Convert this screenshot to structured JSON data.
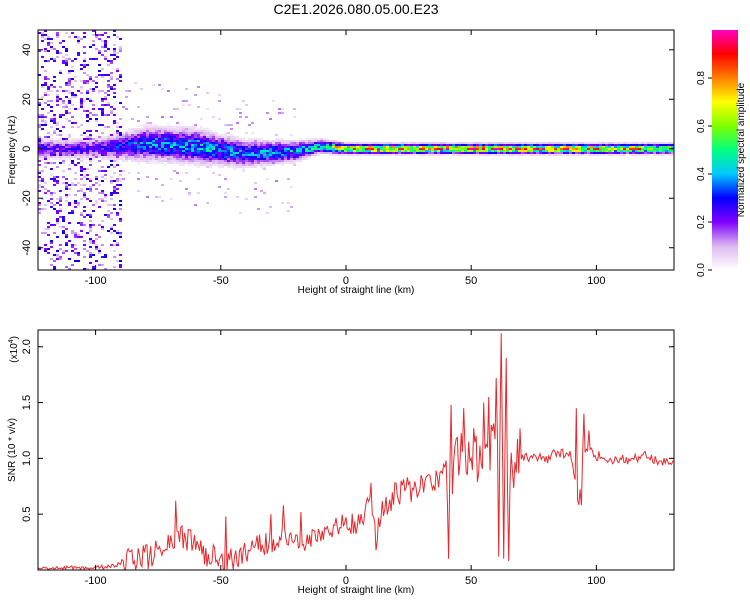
{
  "title": "C2E1.2026.080.05.00.E23",
  "chart_data": [
    {
      "type": "heatmap",
      "name": "spectrogram",
      "xlabel": "Height of straight line (km)",
      "ylabel": "Frequency (Hz)",
      "xlim": [
        -123,
        131
      ],
      "ylim": [
        -49,
        48
      ],
      "xticks": [
        -100,
        -50,
        0,
        50,
        100
      ],
      "yticks": [
        -40,
        -20,
        0,
        20,
        40
      ],
      "colorbar": {
        "label": "Normalized spectral amplitude",
        "range": [
          0,
          1
        ],
        "ticks": [
          0.0,
          0.2,
          0.4,
          0.6,
          0.8
        ],
        "tick_labels": [
          "0.0",
          "0.2",
          "0.4",
          "0.6",
          "0.8"
        ],
        "colormap": [
          "#ffffff",
          "#dcb8f0",
          "#8000ff",
          "#0000ff",
          "#00c8ff",
          "#00ff80",
          "#80ff00",
          "#ffff00",
          "#ff8000",
          "#ff0000",
          "#ff00c0"
        ]
      },
      "ridge": {
        "description": "spectral energy concentrated near 0 Hz",
        "x": [
          -100,
          -80,
          -60,
          -40,
          -20,
          -10,
          0,
          20,
          40,
          60,
          80,
          100,
          131
        ],
        "freq_center": [
          0,
          2,
          1,
          -2,
          -1,
          1,
          0,
          0,
          0,
          0,
          0,
          0,
          0
        ],
        "freq_halfwidth": [
          3,
          5,
          5,
          4,
          3,
          2,
          1.5,
          1.5,
          1.5,
          1.5,
          1.5,
          1.5,
          1.5
        ],
        "peak_amplitude": [
          0.25,
          0.4,
          0.45,
          0.4,
          0.45,
          0.55,
          0.85,
          0.95,
          0.9,
          0.95,
          0.9,
          0.9,
          0.7
        ]
      },
      "noise_region": {
        "x_range": [
          -123,
          -90
        ],
        "freq_range": [
          -49,
          48
        ],
        "amplitude": 0.15
      }
    },
    {
      "type": "line",
      "name": "snr",
      "xlabel": "Height of straight line (km)",
      "ylabel": "SNR (10 * v/v)",
      "scale_label": "(x10",
      "scale_exponent": "4",
      "xlim": [
        -123,
        131
      ],
      "ylim": [
        0,
        2.15
      ],
      "xticks": [
        -100,
        -50,
        0,
        50,
        100
      ],
      "yticks": [
        0.5,
        1.0,
        1.5,
        2.0
      ],
      "ytick_labels": [
        "0.5",
        "1.0",
        "1.5",
        "2.0"
      ],
      "color": "#e8282c",
      "series": [
        {
          "name": "SNR",
          "x": [
            -123,
            -110,
            -100,
            -95,
            -90,
            -85,
            -80,
            -75,
            -70,
            -65,
            -60,
            -55,
            -50,
            -45,
            -40,
            -35,
            -30,
            -25,
            -20,
            -15,
            -10,
            -5,
            0,
            5,
            10,
            12,
            15,
            20,
            25,
            30,
            35,
            40,
            42,
            45,
            48,
            50,
            55,
            60,
            62,
            64,
            65,
            70,
            75,
            80,
            85,
            90,
            93,
            95,
            100,
            105,
            110,
            115,
            120,
            125,
            131
          ],
          "values": [
            0.02,
            0.02,
            0.02,
            0.03,
            0.05,
            0.1,
            0.12,
            0.15,
            0.25,
            0.28,
            0.22,
            0.12,
            0.08,
            0.08,
            0.15,
            0.22,
            0.25,
            0.28,
            0.3,
            0.25,
            0.35,
            0.38,
            0.42,
            0.45,
            0.6,
            0.25,
            0.55,
            0.7,
            0.72,
            0.75,
            0.82,
            0.9,
            0.85,
            0.95,
            1.0,
            1.08,
            0.95,
            1.15,
            1.5,
            0.98,
            1.0,
            1.0,
            1.02,
            1.0,
            1.05,
            1.02,
            0.6,
            1.1,
            1.02,
            1.0,
            0.98,
            1.0,
            1.02,
            0.98,
            0.95
          ],
          "spikes": [
            {
              "x": -68,
              "value": 0.62
            },
            {
              "x": -48,
              "value": 0.48
            },
            {
              "x": -30,
              "value": 0.5
            },
            {
              "x": -25,
              "value": 0.58
            },
            {
              "x": -18,
              "value": 0.52
            },
            {
              "x": 10,
              "value": 0.78
            },
            {
              "x": 40,
              "value": 0.98
            },
            {
              "x": 41,
              "value": 0.1
            },
            {
              "x": 42,
              "value": 1.48
            },
            {
              "x": 47,
              "value": 1.45
            },
            {
              "x": 52,
              "value": 1.2
            },
            {
              "x": 55,
              "value": 1.5
            },
            {
              "x": 57,
              "value": 1.55
            },
            {
              "x": 60,
              "value": 1.72
            },
            {
              "x": 61,
              "value": 0.12
            },
            {
              "x": 62,
              "value": 2.12
            },
            {
              "x": 63,
              "value": 0.1
            },
            {
              "x": 64,
              "value": 1.9
            },
            {
              "x": 65,
              "value": 0.08
            },
            {
              "x": 66,
              "value": 1.05
            },
            {
              "x": 92,
              "value": 1.45
            },
            {
              "x": 94,
              "value": 0.58
            },
            {
              "x": 95,
              "value": 1.4
            },
            {
              "x": 97,
              "value": 1.25
            }
          ]
        }
      ]
    }
  ]
}
